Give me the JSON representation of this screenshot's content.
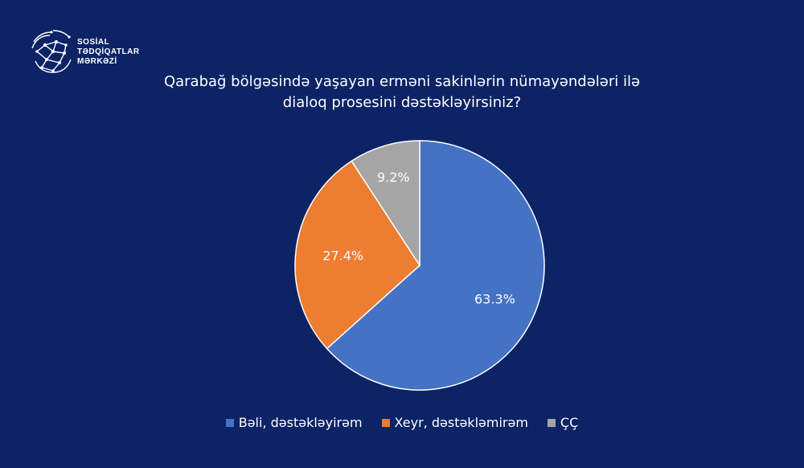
{
  "brand": {
    "line1": "SOSİAL",
    "line2": "TƏDQİQATLAR",
    "line3": "MƏRKƏZİ"
  },
  "chart_data": {
    "type": "pie",
    "title_line1": "Qarabağ bölgəsində yaşayan erməni sakinlərin nümayəndələri ilə",
    "title_line2": "dialoq prosesini dəstəkləyirsiniz?",
    "categories": [
      "Bəli, dəstəkləyirəm",
      "Xeyr, dəstəkləmirəm",
      "ÇÇ"
    ],
    "values": [
      63.3,
      27.4,
      9.2
    ],
    "labels": [
      "63.3%",
      "27.4%",
      "9.2%"
    ],
    "colors": [
      "#4472c4",
      "#ed7d31",
      "#a5a5a5"
    ],
    "start": "12 o'clock",
    "direction": "clockwise",
    "legend_position": "bottom"
  }
}
